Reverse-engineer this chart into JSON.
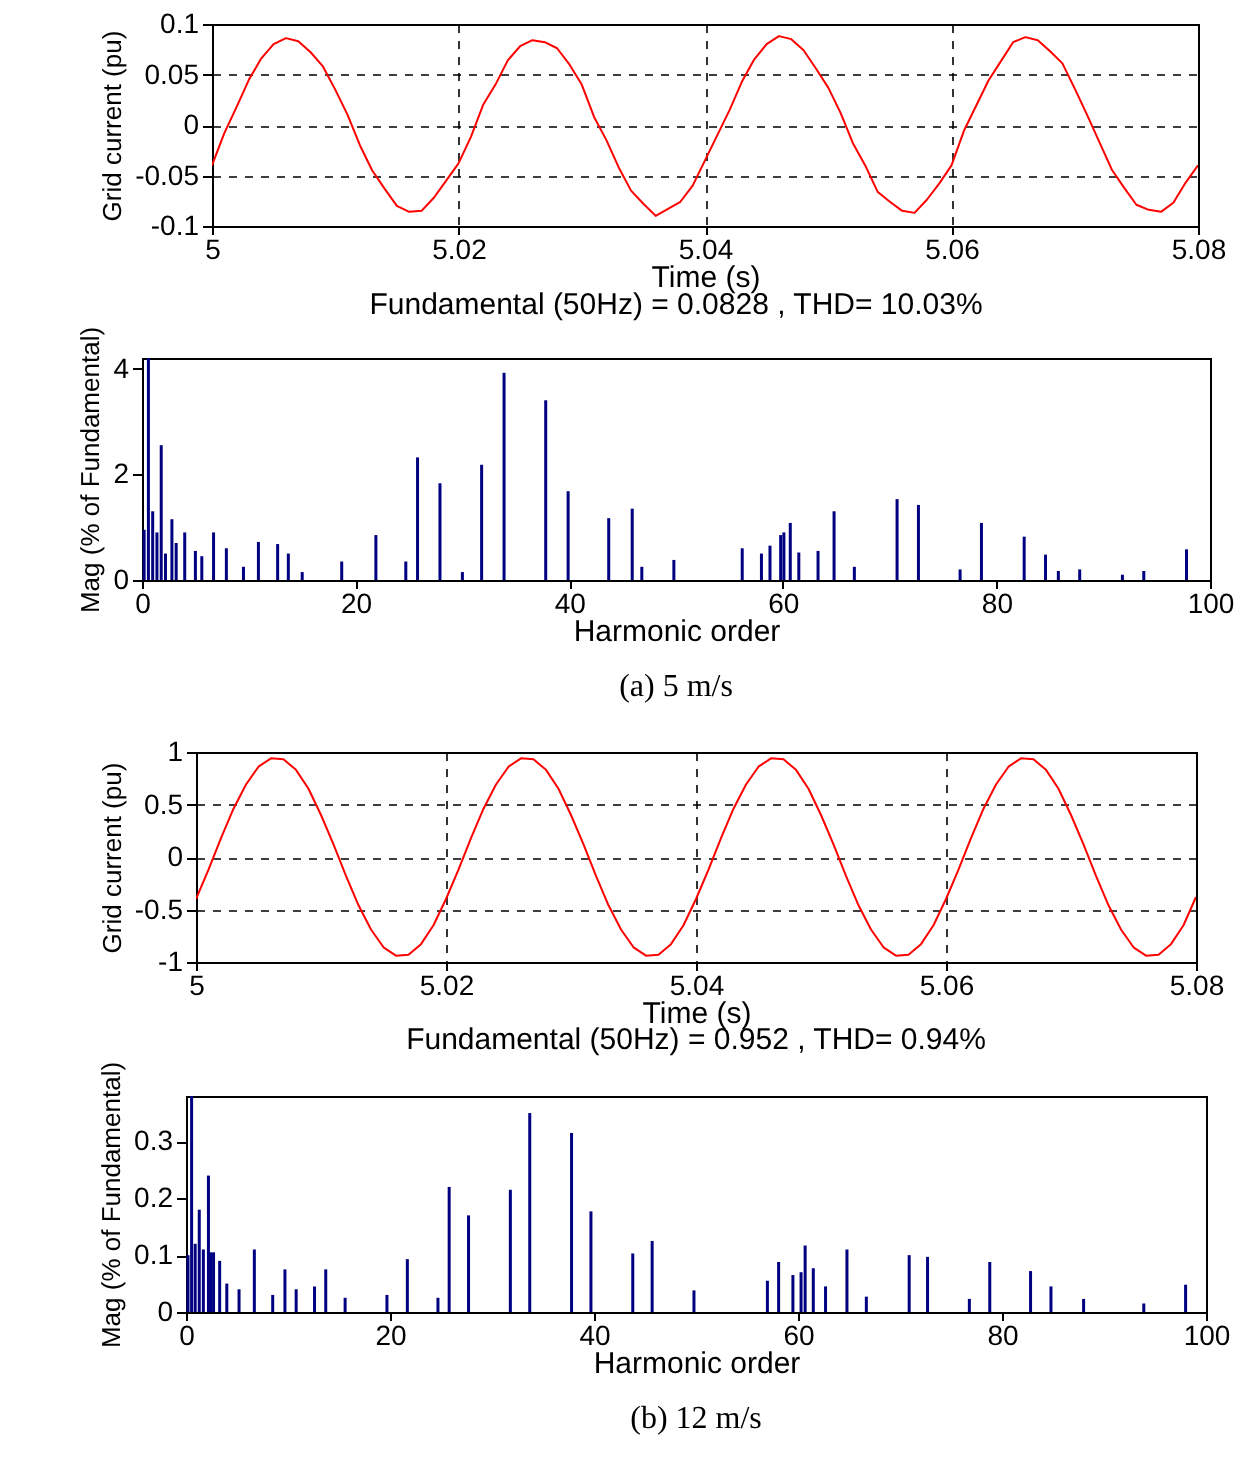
{
  "chart_data": [
    {
      "type": "line",
      "xlabel": "Time (s)",
      "ylabel": "Grid current (pu)",
      "grid": true,
      "xlim": [
        5,
        5.08
      ],
      "xticks": [
        5,
        5.02,
        5.04,
        5.06,
        5.08
      ],
      "ylim": [
        -0.1,
        0.1
      ],
      "yticks": [
        -0.1,
        -0.05,
        0,
        0.05,
        0.1
      ],
      "x": [
        5,
        5.001,
        5.002,
        5.003,
        5.004,
        5.005,
        5.006,
        5.007,
        5.008,
        5.009,
        5.01,
        5.011,
        5.012,
        5.013,
        5.014,
        5.015,
        5.016,
        5.017,
        5.018,
        5.019,
        5.02,
        5.021,
        5.022,
        5.023,
        5.024,
        5.025,
        5.026,
        5.027,
        5.028,
        5.029,
        5.03,
        5.031,
        5.032,
        5.033,
        5.034,
        5.035,
        5.036,
        5.037,
        5.038,
        5.039,
        5.04,
        5.041,
        5.042,
        5.043,
        5.044,
        5.045,
        5.046,
        5.047,
        5.048,
        5.049,
        5.05,
        5.051,
        5.052,
        5.053,
        5.054,
        5.055,
        5.056,
        5.057,
        5.058,
        5.059,
        5.06,
        5.061,
        5.062,
        5.063,
        5.064,
        5.065,
        5.066,
        5.067,
        5.068,
        5.069,
        5.07,
        5.071,
        5.072,
        5.073,
        5.074,
        5.075,
        5.076,
        5.077,
        5.078,
        5.079,
        5.08
      ],
      "color": "#ff0000",
      "values": [
        -0.04,
        -0.008,
        0.018,
        0.045,
        0.066,
        0.08,
        0.086,
        0.083,
        0.072,
        0.058,
        0.035,
        0.01,
        -0.02,
        -0.045,
        -0.063,
        -0.08,
        -0.086,
        -0.085,
        -0.072,
        -0.055,
        -0.038,
        -0.012,
        0.02,
        0.04,
        0.064,
        0.078,
        0.084,
        0.082,
        0.076,
        0.06,
        0.04,
        0.008,
        -0.015,
        -0.042,
        -0.065,
        -0.078,
        -0.09,
        -0.083,
        -0.076,
        -0.06,
        -0.035,
        -0.01,
        0.015,
        0.043,
        0.065,
        0.08,
        0.088,
        0.085,
        0.074,
        0.056,
        0.037,
        0.012,
        -0.018,
        -0.04,
        -0.066,
        -0.076,
        -0.085,
        -0.087,
        -0.074,
        -0.058,
        -0.04,
        -0.006,
        0.019,
        0.044,
        0.063,
        0.082,
        0.087,
        0.084,
        0.073,
        0.061,
        0.036,
        0.01,
        -0.017,
        -0.044,
        -0.062,
        -0.079,
        -0.084,
        -0.086,
        -0.077,
        -0.057,
        -0.04
      ]
    },
    {
      "type": "bar",
      "title": "Fundamental (50Hz) = 0.0828 , THD= 10.03%",
      "xlabel": "Harmonic order",
      "ylabel": "Mag (% of Fundamental)",
      "xlim": [
        0,
        100
      ],
      "xticks": [
        0,
        20,
        40,
        60,
        80,
        100
      ],
      "ylim": [
        0,
        4.2
      ],
      "yticks": [
        0,
        2,
        4
      ],
      "color": "#000080",
      "annotations": [
        "(a) 5 m/s"
      ],
      "x": [
        0.2,
        0.6,
        1.0,
        1.4,
        1.8,
        2.2,
        2.8,
        3.2,
        4.0,
        5.0,
        5.6,
        6.7,
        7.9,
        9.5,
        10.9,
        12.7,
        13.7,
        15,
        18.7,
        21.9,
        24.7,
        25.8,
        27.9,
        30,
        31.8,
        33.9,
        37.8,
        39.9,
        43.7,
        45.9,
        46.8,
        49.8,
        56.2,
        58.0,
        58.8,
        59.8,
        60.1,
        60.7,
        61.5,
        63.3,
        64.8,
        66.7,
        70.7,
        72.7,
        76.6,
        78.6,
        82.6,
        84.6,
        85.8,
        87.8,
        91.8,
        93.8,
        97.8
      ],
      "values": [
        0.95,
        4.2,
        1.3,
        0.9,
        2.55,
        0.5,
        1.15,
        0.7,
        0.9,
        0.55,
        0.45,
        0.9,
        0.6,
        0.25,
        0.72,
        0.68,
        0.5,
        0.15,
        0.35,
        0.85,
        0.35,
        2.32,
        1.83,
        0.15,
        2.18,
        3.92,
        3.4,
        1.68,
        1.17,
        1.35,
        0.25,
        0.38,
        0.6,
        0.5,
        0.65,
        0.85,
        0.9,
        1.08,
        0.52,
        0.55,
        1.3,
        0.25,
        1.53,
        1.42,
        0.2,
        1.08,
        0.82,
        0.48,
        0.17,
        0.2,
        0.1,
        0.17,
        0.58
      ]
    },
    {
      "type": "line",
      "xlabel": "Time (s)",
      "ylabel": "Grid current (pu)",
      "grid": true,
      "xlim": [
        5,
        5.08
      ],
      "xticks": [
        5,
        5.02,
        5.04,
        5.06,
        5.08
      ],
      "ylim": [
        -1,
        1
      ],
      "yticks": [
        -1,
        -0.5,
        0,
        0.5,
        1
      ],
      "x": [
        5,
        5.001,
        5.002,
        5.003,
        5.004,
        5.005,
        5.006,
        5.007,
        5.008,
        5.009,
        5.01,
        5.011,
        5.012,
        5.013,
        5.014,
        5.015,
        5.016,
        5.017,
        5.018,
        5.019,
        5.02,
        5.021,
        5.022,
        5.023,
        5.024,
        5.025,
        5.026,
        5.027,
        5.028,
        5.029,
        5.03,
        5.031,
        5.032,
        5.033,
        5.034,
        5.035,
        5.036,
        5.037,
        5.038,
        5.039,
        5.04,
        5.041,
        5.042,
        5.043,
        5.044,
        5.045,
        5.046,
        5.047,
        5.048,
        5.049,
        5.05,
        5.051,
        5.052,
        5.053,
        5.054,
        5.055,
        5.056,
        5.057,
        5.058,
        5.059,
        5.06,
        5.061,
        5.062,
        5.063,
        5.064,
        5.065,
        5.066,
        5.067,
        5.068,
        5.069,
        5.07,
        5.071,
        5.072,
        5.073,
        5.074,
        5.075,
        5.076,
        5.077,
        5.078,
        5.079,
        5.08
      ],
      "color": "#ff0000",
      "values": [
        -0.4,
        -0.12,
        0.18,
        0.46,
        0.69,
        0.86,
        0.94,
        0.93,
        0.83,
        0.65,
        0.4,
        0.12,
        -0.18,
        -0.46,
        -0.69,
        -0.86,
        -0.94,
        -0.93,
        -0.83,
        -0.65,
        -0.4,
        -0.12,
        0.18,
        0.46,
        0.69,
        0.86,
        0.94,
        0.93,
        0.83,
        0.65,
        0.4,
        0.12,
        -0.18,
        -0.46,
        -0.69,
        -0.86,
        -0.94,
        -0.93,
        -0.83,
        -0.65,
        -0.4,
        -0.12,
        0.18,
        0.46,
        0.69,
        0.86,
        0.94,
        0.93,
        0.83,
        0.65,
        0.4,
        0.12,
        -0.18,
        -0.46,
        -0.69,
        -0.86,
        -0.94,
        -0.93,
        -0.83,
        -0.65,
        -0.4,
        -0.12,
        0.18,
        0.46,
        0.69,
        0.86,
        0.94,
        0.93,
        0.83,
        0.65,
        0.4,
        0.12,
        -0.18,
        -0.46,
        -0.69,
        -0.86,
        -0.94,
        -0.93,
        -0.83,
        -0.65,
        -0.38
      ]
    },
    {
      "type": "bar",
      "title": "Fundamental (50Hz) = 0.952 , THD= 0.94%",
      "xlabel": "Harmonic order",
      "ylabel": "Mag (% of Fundamental)",
      "xlim": [
        0,
        100
      ],
      "xticks": [
        0,
        20,
        40,
        60,
        80,
        100
      ],
      "ylim": [
        0,
        0.38
      ],
      "yticks": [
        0,
        0.1,
        0.2,
        0.3
      ],
      "color": "#000080",
      "annotations": [
        "(b) 12 m/s"
      ],
      "x": [
        0.2,
        0.55,
        0.9,
        1.3,
        1.7,
        2.2,
        2.4,
        2.7,
        3.3,
        4.0,
        5.2,
        6.7,
        8.5,
        9.7,
        10.8,
        12.6,
        13.7,
        15.6,
        19.7,
        21.7,
        24.7,
        25.8,
        27.7,
        31.8,
        33.7,
        37.8,
        39.7,
        43.8,
        45.7,
        49.8,
        57.0,
        58.1,
        59.5,
        60.3,
        60.7,
        61.5,
        62.7,
        64.8,
        66.7,
        70.9,
        72.7,
        76.8,
        78.8,
        82.8,
        84.8,
        88.0,
        93.9,
        98.0
      ],
      "values": [
        0.1,
        0.38,
        0.12,
        0.18,
        0.11,
        0.24,
        0.105,
        0.105,
        0.09,
        0.05,
        0.04,
        0.11,
        0.03,
        0.075,
        0.04,
        0.045,
        0.075,
        0.025,
        0.03,
        0.093,
        0.025,
        0.22,
        0.17,
        0.215,
        0.35,
        0.315,
        0.177,
        0.103,
        0.125,
        0.038,
        0.055,
        0.088,
        0.065,
        0.07,
        0.117,
        0.077,
        0.045,
        0.11,
        0.027,
        0.1,
        0.097,
        0.023,
        0.088,
        0.072,
        0.045,
        0.023,
        0.015,
        0.048
      ]
    }
  ]
}
